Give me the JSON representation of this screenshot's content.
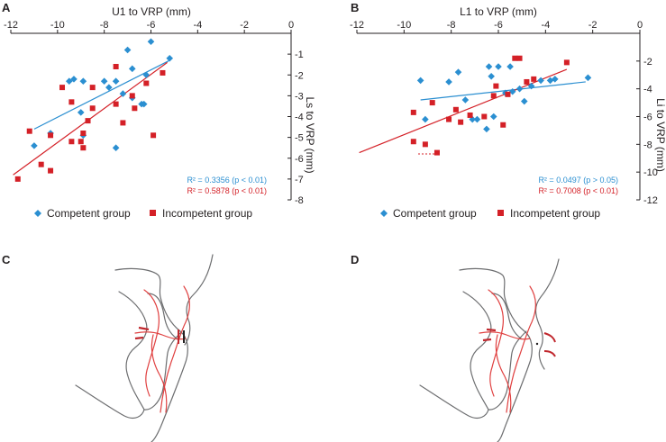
{
  "figure": {
    "panels": [
      {
        "letter": "A"
      },
      {
        "letter": "B"
      },
      {
        "letter": "C"
      },
      {
        "letter": "D"
      }
    ]
  },
  "colors": {
    "competent": "#2b8fd1",
    "incompetent": "#d42027",
    "axis": "#231f20",
    "profile_gray": "#6d6e70",
    "profile_red": "#e04040"
  },
  "legend": {
    "competent": "Competent group",
    "incompetent": "Incompetent group"
  },
  "chart_data": [
    {
      "panel": "A",
      "type": "scatter",
      "xlabel": "U1 to VRP (mm)",
      "ylabel": "Ls to VRP (mm)",
      "x_ticks": [
        -12,
        -10,
        -8,
        -6,
        -4,
        -2,
        0
      ],
      "y_ticks": [
        -1,
        -2,
        -3,
        -4,
        -5,
        -6,
        -7,
        -8
      ],
      "xlim": [
        -12,
        0
      ],
      "ylim": [
        -8,
        0
      ],
      "series": [
        {
          "name": "Competent group",
          "marker": "diamond",
          "points": [
            [
              -11.0,
              -5.4
            ],
            [
              -10.3,
              -4.8
            ],
            [
              -9.5,
              -2.3
            ],
            [
              -9.3,
              -2.2
            ],
            [
              -8.9,
              -2.3
            ],
            [
              -9.0,
              -3.8
            ],
            [
              -8.9,
              -4.9
            ],
            [
              -8.0,
              -2.3
            ],
            [
              -7.8,
              -2.6
            ],
            [
              -7.5,
              -2.3
            ],
            [
              -7.2,
              -2.9
            ],
            [
              -7.0,
              -0.8
            ],
            [
              -6.8,
              -1.7
            ],
            [
              -6.8,
              -3.1
            ],
            [
              -6.4,
              -3.4
            ],
            [
              -6.3,
              -3.4
            ],
            [
              -6.2,
              -2.0
            ],
            [
              -6.0,
              -0.4
            ],
            [
              -5.2,
              -1.2
            ],
            [
              -7.5,
              -5.5
            ]
          ],
          "trend": {
            "x": [
              -11.0,
              -5.2
            ],
            "y": [
              -4.6,
              -1.3
            ]
          },
          "r2_text": "R² = 0.3356 (p < 0.01)"
        },
        {
          "name": "Incompetent group",
          "marker": "square",
          "points": [
            [
              -11.7,
              -7.0
            ],
            [
              -11.2,
              -4.7
            ],
            [
              -10.7,
              -6.3
            ],
            [
              -10.3,
              -6.6
            ],
            [
              -10.3,
              -4.9
            ],
            [
              -9.8,
              -2.6
            ],
            [
              -9.4,
              -3.3
            ],
            [
              -9.4,
              -5.2
            ],
            [
              -9.0,
              -5.2
            ],
            [
              -8.9,
              -5.5
            ],
            [
              -8.9,
              -4.8
            ],
            [
              -8.7,
              -4.2
            ],
            [
              -8.5,
              -3.6
            ],
            [
              -8.5,
              -2.6
            ],
            [
              -7.5,
              -1.6
            ],
            [
              -7.5,
              -3.4
            ],
            [
              -7.2,
              -4.3
            ],
            [
              -6.8,
              -3.0
            ],
            [
              -6.7,
              -3.6
            ],
            [
              -6.2,
              -2.4
            ],
            [
              -5.9,
              -4.9
            ],
            [
              -5.5,
              -1.9
            ]
          ],
          "trend": {
            "x": [
              -11.9,
              -5.3
            ],
            "y": [
              -6.8,
              -1.4
            ]
          },
          "r2_text": "R² = 0.5878 (p < 0.01)"
        }
      ]
    },
    {
      "panel": "B",
      "type": "scatter",
      "xlabel": "L1 to VRP (mm)",
      "ylabel": "Li to VRP (mm)",
      "x_ticks": [
        -12,
        -10,
        -8,
        -6,
        -4,
        -2,
        0
      ],
      "y_ticks": [
        -2,
        -4,
        -6,
        -8,
        -10,
        -12
      ],
      "xlim": [
        -12,
        0
      ],
      "ylim": [
        -12,
        0
      ],
      "series": [
        {
          "name": "Competent group",
          "marker": "diamond",
          "points": [
            [
              -9.3,
              -3.4
            ],
            [
              -9.1,
              -6.2
            ],
            [
              -8.1,
              -3.5
            ],
            [
              -7.7,
              -2.8
            ],
            [
              -7.4,
              -4.8
            ],
            [
              -7.1,
              -6.2
            ],
            [
              -6.9,
              -6.2
            ],
            [
              -6.5,
              -6.9
            ],
            [
              -6.4,
              -2.4
            ],
            [
              -6.3,
              -3.1
            ],
            [
              -6.2,
              -6.0
            ],
            [
              -6.0,
              -2.4
            ],
            [
              -5.7,
              -4.3
            ],
            [
              -5.5,
              -2.4
            ],
            [
              -5.4,
              -4.2
            ],
            [
              -5.1,
              -4.0
            ],
            [
              -4.9,
              -4.9
            ],
            [
              -4.6,
              -3.8
            ],
            [
              -4.2,
              -3.4
            ],
            [
              -3.8,
              -3.4
            ],
            [
              -3.6,
              -3.3
            ],
            [
              -2.2,
              -3.2
            ]
          ],
          "trend": {
            "x": [
              -9.3,
              -2.3
            ],
            "y": [
              -4.8,
              -3.5
            ]
          },
          "r2_text": "R² = 0.0497 (p > 0.05)"
        },
        {
          "name": "Incompetent group",
          "marker": "square",
          "points": [
            [
              -9.6,
              -7.8
            ],
            [
              -9.6,
              -5.7
            ],
            [
              -9.1,
              -8.0
            ],
            [
              -8.8,
              -5.0
            ],
            [
              -8.6,
              -8.6
            ],
            [
              -8.1,
              -6.2
            ],
            [
              -7.8,
              -5.5
            ],
            [
              -7.6,
              -6.4
            ],
            [
              -7.2,
              -5.9
            ],
            [
              -6.6,
              -6.0
            ],
            [
              -6.2,
              -4.5
            ],
            [
              -6.1,
              -3.8
            ],
            [
              -5.8,
              -6.6
            ],
            [
              -5.6,
              -4.4
            ],
            [
              -5.3,
              -1.8
            ],
            [
              -5.1,
              -1.8
            ],
            [
              -4.8,
              -3.5
            ],
            [
              -4.5,
              -3.3
            ],
            [
              -3.1,
              -2.1
            ]
          ],
          "trend": {
            "x": [
              -11.9,
              -3.1
            ],
            "y": [
              -8.6,
              -2.6
            ]
          },
          "r2_text": "R² = 0.7008 (p < 0.01)"
        }
      ]
    }
  ]
}
